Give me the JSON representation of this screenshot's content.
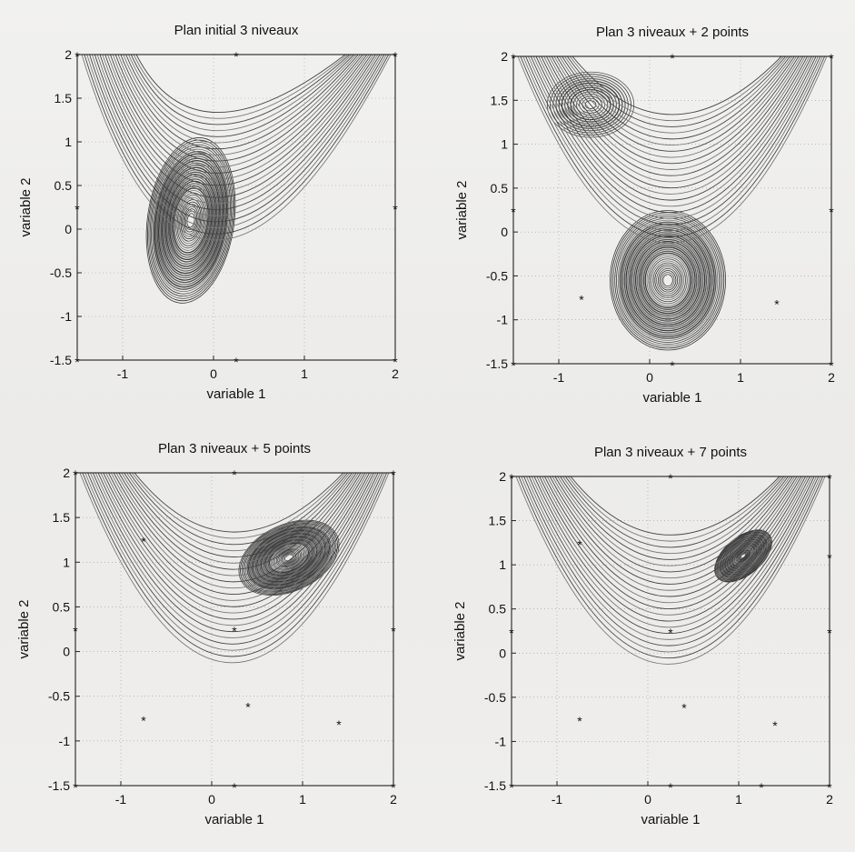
{
  "chart_data": [
    {
      "type": "streamline",
      "title": "Plan initial 3 niveaux",
      "xlabel": "variable 1",
      "ylabel": "variable 2",
      "xlim": [
        -1.5,
        2
      ],
      "ylim": [
        -1.5,
        2
      ],
      "xticks": [
        -1,
        0,
        1,
        2
      ],
      "yticks": [
        -1.5,
        -1,
        -0.5,
        0,
        0.5,
        1,
        1.5,
        2
      ],
      "grid": true,
      "design_points": [
        [
          -1.5,
          -1.5
        ],
        [
          0.25,
          -1.5
        ],
        [
          2,
          -1.5
        ],
        [
          -1.5,
          0.25
        ],
        [
          2,
          0.25
        ],
        [
          -1.5,
          2
        ],
        [
          0.25,
          2
        ],
        [
          2,
          2
        ]
      ],
      "centers": [
        [
          -0.25,
          0.1,
          0.45,
          0.9
        ]
      ]
    },
    {
      "type": "streamline",
      "title": "Plan 3 niveaux + 2 points",
      "xlabel": "variable 1",
      "ylabel": "variable 2",
      "xlim": [
        -1.5,
        2
      ],
      "ylim": [
        -1.5,
        2
      ],
      "xticks": [
        -1,
        0,
        1,
        2
      ],
      "yticks": [
        -1.5,
        -1,
        -0.5,
        0,
        0.5,
        1,
        1.5,
        2
      ],
      "grid": true,
      "design_points": [
        [
          -1.5,
          -1.5
        ],
        [
          0.25,
          -1.5
        ],
        [
          2,
          -1.5
        ],
        [
          -1.5,
          0.25
        ],
        [
          2,
          0.25
        ],
        [
          -1.5,
          2
        ],
        [
          0.25,
          2
        ],
        [
          2,
          2
        ],
        [
          -0.75,
          -0.75
        ],
        [
          1.4,
          -0.8
        ]
      ],
      "centers": [
        [
          0.2,
          -0.55,
          0.6,
          0.75
        ],
        [
          -0.65,
          1.45,
          0.45,
          0.35
        ]
      ]
    },
    {
      "type": "streamline",
      "title": "Plan 3 niveaux + 5 points",
      "xlabel": "variable 1",
      "ylabel": "variable 2",
      "xlim": [
        -1.5,
        2
      ],
      "ylim": [
        -1.5,
        2
      ],
      "xticks": [
        -1,
        0,
        1,
        2
      ],
      "yticks": [
        -1.5,
        -1,
        -0.5,
        0,
        0.5,
        1,
        1.5,
        2
      ],
      "grid": true,
      "design_points": [
        [
          -1.5,
          -1.5
        ],
        [
          0.25,
          -1.5
        ],
        [
          2,
          -1.5
        ],
        [
          -1.5,
          0.25
        ],
        [
          2,
          0.25
        ],
        [
          -1.5,
          2
        ],
        [
          0.25,
          2
        ],
        [
          2,
          2
        ],
        [
          -0.75,
          1.25
        ],
        [
          -0.75,
          -0.75
        ],
        [
          0.4,
          -0.6
        ],
        [
          1.4,
          -0.8
        ],
        [
          0.25,
          0.25
        ]
      ],
      "centers": [
        [
          0.85,
          1.05,
          0.55,
          0.35
        ]
      ]
    },
    {
      "type": "streamline",
      "title": "Plan 3 niveaux + 7 points",
      "xlabel": "variable 1",
      "ylabel": "variable 2",
      "xlim": [
        -1.5,
        2
      ],
      "ylim": [
        -1.5,
        2
      ],
      "xticks": [
        -1,
        0,
        1,
        2
      ],
      "yticks": [
        -1.5,
        -1,
        -0.5,
        0,
        0.5,
        1,
        1.5,
        2
      ],
      "grid": true,
      "design_points": [
        [
          -1.5,
          -1.5
        ],
        [
          0.25,
          -1.5
        ],
        [
          2,
          -1.5
        ],
        [
          -1.5,
          0.25
        ],
        [
          2,
          0.25
        ],
        [
          -1.5,
          2
        ],
        [
          0.25,
          2
        ],
        [
          2,
          2
        ],
        [
          -0.75,
          1.25
        ],
        [
          -0.75,
          -0.75
        ],
        [
          0.4,
          -0.6
        ],
        [
          1.4,
          -0.8
        ],
        [
          0.25,
          0.25
        ],
        [
          1.25,
          -1.5
        ],
        [
          2,
          1.1
        ]
      ],
      "centers": [
        [
          1.05,
          1.1,
          0.35,
          0.2
        ]
      ]
    }
  ]
}
